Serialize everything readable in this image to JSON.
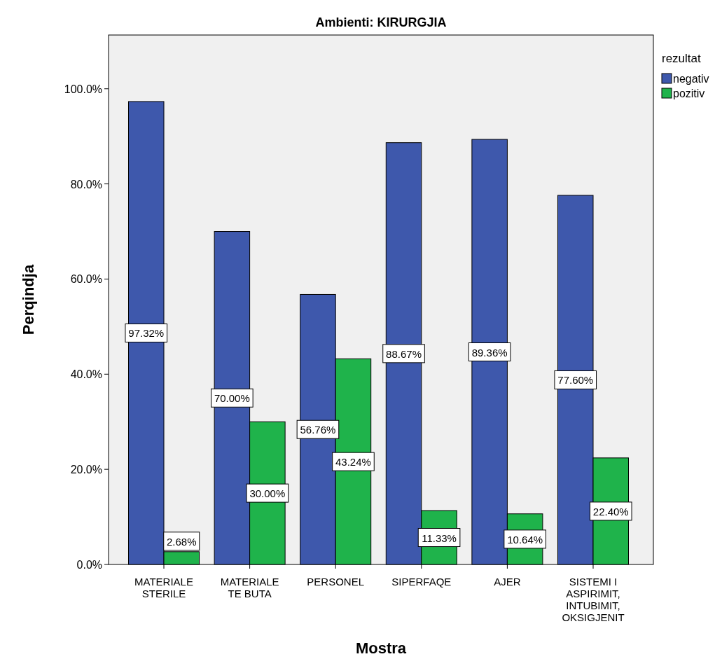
{
  "chart_data": {
    "type": "bar",
    "title": "Ambienti: KIRURGJIA",
    "xlabel": "Mostra",
    "ylabel": "Perqindja",
    "legend_title": "rezultat",
    "legend": "top right",
    "grid": false,
    "categories": [
      "MATERIALE STERILE",
      "MATERIALE TE BUTA",
      "PERSONEL",
      "SIPERFAQE",
      "AJER",
      "SISTEMI I ASPIRIMIT, INTUBIMIT, OKSIGJENIT"
    ],
    "series": [
      {
        "name": "negativ",
        "color": "#3e58ac",
        "values": [
          97.32,
          70.0,
          56.76,
          88.67,
          89.36,
          77.6
        ],
        "value_labels": [
          "97.32%",
          "70.00%",
          "56.76%",
          "88.67%",
          "89.36%",
          "77.60%"
        ]
      },
      {
        "name": "pozitiv",
        "color": "#1fb34b",
        "values": [
          2.68,
          30.0,
          43.24,
          11.33,
          10.64,
          22.4
        ],
        "value_labels": [
          "2.68%",
          "30.00%",
          "43.24%",
          "11.33%",
          "10.64%",
          "22.40%"
        ]
      }
    ],
    "ylim": [
      0,
      111.3
    ],
    "yticks": [
      {
        "value": 0,
        "label": "0.0%"
      },
      {
        "value": 20,
        "label": "20.0%"
      },
      {
        "value": 40,
        "label": "40.0%"
      },
      {
        "value": 60,
        "label": "60.0%"
      },
      {
        "value": 80,
        "label": "80.0%"
      },
      {
        "value": 100,
        "label": "100.0%"
      }
    ]
  }
}
